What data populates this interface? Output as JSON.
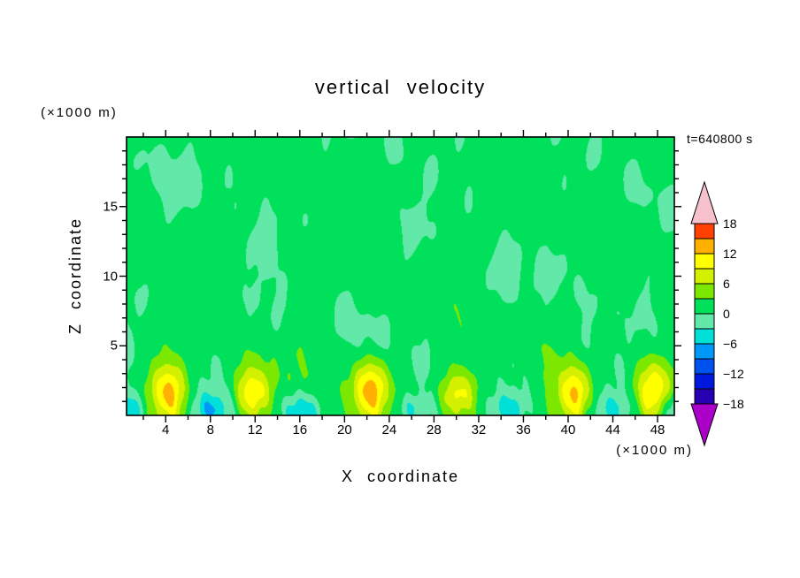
{
  "title": "vertical velocity",
  "time_label": "t=640800 s",
  "x_axis": {
    "label": "X coordinate",
    "unit": "(×1000 m)",
    "ticks": [
      4,
      8,
      12,
      16,
      20,
      24,
      28,
      32,
      36,
      40,
      44,
      48
    ],
    "minor_step": 2
  },
  "z_axis": {
    "label": "Z coordinate",
    "unit": "(×1000 m)",
    "ticks": [
      5,
      10,
      15
    ],
    "minor_step": 1
  },
  "colorbar": {
    "labels": [
      "18",
      "12",
      "6",
      "0",
      "−6",
      "−12",
      "−18"
    ],
    "label_values": [
      18,
      12,
      6,
      0,
      -6,
      -12,
      -18
    ],
    "levels": [
      -18,
      -15,
      -12,
      -9,
      -6,
      -3,
      0,
      3,
      6,
      9,
      12,
      15,
      18
    ],
    "band_colors": [
      "#2800b4",
      "#0018dc",
      "#0052f0",
      "#0098f8",
      "#00e0d8",
      "#62e8a8",
      "#00e05a",
      "#7ce800",
      "#d2f000",
      "#ffff00",
      "#ffb000",
      "#ff4000"
    ],
    "under_color": "#aa00c8",
    "over_color": "#f6c0cc"
  },
  "chart_data": {
    "type": "heatmap",
    "subtype": "filled-contour",
    "title": "vertical velocity",
    "time_label": "t=640800 s",
    "xlabel": "X coordinate",
    "ylabel": "Z coordinate",
    "x_unit": "(×1000 m)",
    "z_unit": "(×1000 m)",
    "x_range": [
      0.5,
      49.5
    ],
    "z_range": [
      0,
      20
    ],
    "contour_interval": 3,
    "value_band_min": -18,
    "value_band_max": 18,
    "colorbar_tick_values": [
      18,
      12,
      6,
      0,
      -6,
      -12,
      -18
    ],
    "description": "Mostly weak vertical velocity (−3 to +3 band, green shades) through the domain; a row of boundary-layer updraft plumes near the surface with yellow/orange cores (peaks ≈ 9–15) around z≈2, flanked by cyan downdraft patches (−3 to −6) hugging the lower boundary.",
    "updraft_plumes": [
      {
        "x": 4.2,
        "z": 1.7,
        "sx": 1.7,
        "sz": 2.1,
        "peak": 12.6
      },
      {
        "x": 11.9,
        "z": 1.6,
        "sx": 1.5,
        "sz": 1.9,
        "peak": 11.2
      },
      {
        "x": 22.2,
        "z": 1.8,
        "sx": 1.6,
        "sz": 2.2,
        "peak": 13.2
      },
      {
        "x": 30.2,
        "z": 1.5,
        "sx": 1.5,
        "sz": 1.8,
        "peak": 10.8
      },
      {
        "x": 40.5,
        "z": 1.6,
        "sx": 1.5,
        "sz": 2.0,
        "peak": 11.4
      },
      {
        "x": 47.8,
        "z": 1.7,
        "sx": 1.6,
        "sz": 2.1,
        "peak": 12.4
      }
    ],
    "downdrafts": [
      {
        "x": 1.0,
        "z": 0.5,
        "sx": 1.6,
        "sz": 1.3,
        "peak": -6.0
      },
      {
        "x": 8.2,
        "z": 0.4,
        "sx": 1.5,
        "sz": 1.1,
        "peak": -5.2
      },
      {
        "x": 16.3,
        "z": 0.5,
        "sx": 1.8,
        "sz": 1.2,
        "peak": -5.6
      },
      {
        "x": 26.2,
        "z": 0.4,
        "sx": 1.6,
        "sz": 1.1,
        "peak": -5.0
      },
      {
        "x": 34.8,
        "z": 0.5,
        "sx": 1.7,
        "sz": 1.2,
        "peak": -5.4
      },
      {
        "x": 44.3,
        "z": 0.4,
        "sx": 1.6,
        "sz": 1.1,
        "peak": -5.2
      },
      {
        "x": 49.6,
        "z": 0.6,
        "sx": 1.4,
        "sz": 1.2,
        "peak": -5.8
      }
    ],
    "render_model": {
      "background_bias": 0.9,
      "background_gain": 1.6,
      "background_clamp": [
        -2.9,
        2.9
      ],
      "total_background_clamp": [
        -4.6,
        4.6
      ],
      "waves": [
        [
          0.5,
          0.3,
          0.45,
          1.7
        ],
        [
          0.35,
          0.55,
          -0.3,
          0.4
        ],
        [
          0.3,
          0.9,
          0.2,
          4.0
        ],
        [
          0.28,
          0.18,
          0.8,
          2.6
        ],
        [
          0.22,
          1.4,
          -0.6,
          0.9
        ],
        [
          0.18,
          2.1,
          0.35,
          3.3
        ],
        [
          0.15,
          0.75,
          1.3,
          5.1
        ],
        [
          0.12,
          3.1,
          -1.1,
          1.2
        ]
      ],
      "surface_waves": [
        [
          0.55,
          2.8,
          1.5,
          0.5
        ],
        [
          0.4,
          5.2,
          0.9,
          2.2
        ]
      ],
      "surface_damp_z": 3
    }
  }
}
